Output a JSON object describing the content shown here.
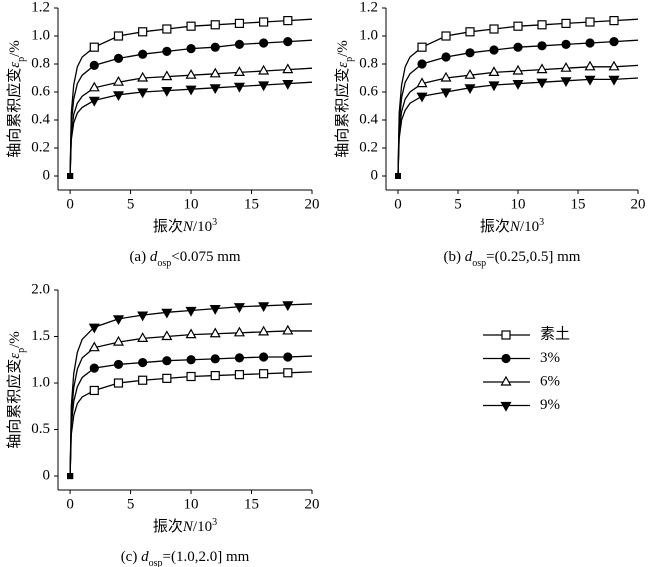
{
  "chart_data": [
    {
      "type": "line",
      "caption": [
        "(a) ",
        "d",
        "osp",
        "<0.075 mm"
      ],
      "xlabel": [
        "振次",
        "N",
        "/10",
        "3"
      ],
      "ylabel": [
        "轴向累积应变",
        "ε",
        "p",
        "/%"
      ],
      "xlim": [
        -1,
        20
      ],
      "xticks": [
        0,
        5,
        10,
        15,
        20
      ],
      "ylim": [
        -0.1,
        1.2
      ],
      "yticks": [
        0,
        0.2,
        0.4,
        0.6,
        0.8,
        {
          "value": 1,
          "label": "1.0"
        },
        1.2
      ],
      "x": [
        0,
        0.1,
        0.3,
        0.6,
        1,
        2,
        4,
        6,
        8,
        10,
        12,
        14,
        16,
        18,
        20
      ],
      "series": [
        {
          "marker": "square-open",
          "color": "#000",
          "values": [
            0,
            0.45,
            0.65,
            0.78,
            0.85,
            0.92,
            1.0,
            1.03,
            1.05,
            1.07,
            1.08,
            1.09,
            1.1,
            1.11,
            1.12
          ]
        },
        {
          "marker": "circle-filled",
          "color": "#000",
          "values": [
            0,
            0.38,
            0.55,
            0.66,
            0.72,
            0.79,
            0.84,
            0.87,
            0.89,
            0.91,
            0.92,
            0.94,
            0.95,
            0.96,
            0.97
          ]
        },
        {
          "marker": "triangle-open",
          "color": "#000",
          "values": [
            0,
            0.3,
            0.44,
            0.52,
            0.57,
            0.63,
            0.67,
            0.7,
            0.71,
            0.72,
            0.73,
            0.74,
            0.75,
            0.76,
            0.77
          ]
        },
        {
          "marker": "triangle-down-filled",
          "color": "#000",
          "values": [
            0,
            0.26,
            0.38,
            0.45,
            0.49,
            0.54,
            0.58,
            0.6,
            0.61,
            0.62,
            0.63,
            0.64,
            0.65,
            0.66,
            0.67
          ]
        }
      ]
    },
    {
      "type": "line",
      "caption": [
        "(b) ",
        "d",
        "osp",
        "=(0.25,0.5]  mm"
      ],
      "xlabel": [
        "振次",
        "N",
        "/10",
        "3"
      ],
      "ylabel": [
        "轴向累积应变",
        "ε",
        "p",
        "/%"
      ],
      "xlim": [
        -1,
        20
      ],
      "xticks": [
        0,
        5,
        10,
        15,
        20
      ],
      "ylim": [
        -0.1,
        1.2
      ],
      "yticks": [
        0,
        0.2,
        0.4,
        0.6,
        0.8,
        {
          "value": 1,
          "label": "1.0"
        },
        1.2
      ],
      "x": [
        0,
        0.1,
        0.3,
        0.6,
        1,
        2,
        4,
        6,
        8,
        10,
        12,
        14,
        16,
        18,
        20
      ],
      "series": [
        {
          "marker": "square-open",
          "color": "#000",
          "values": [
            0,
            0.45,
            0.65,
            0.78,
            0.85,
            0.92,
            1.0,
            1.03,
            1.05,
            1.07,
            1.08,
            1.09,
            1.1,
            1.11,
            1.12
          ]
        },
        {
          "marker": "circle-filled",
          "color": "#000",
          "values": [
            0,
            0.38,
            0.56,
            0.67,
            0.73,
            0.8,
            0.85,
            0.88,
            0.9,
            0.92,
            0.93,
            0.94,
            0.95,
            0.96,
            0.97
          ]
        },
        {
          "marker": "triangle-open",
          "color": "#000",
          "values": [
            0,
            0.32,
            0.46,
            0.55,
            0.6,
            0.66,
            0.7,
            0.72,
            0.74,
            0.75,
            0.76,
            0.77,
            0.78,
            0.78,
            0.79
          ]
        },
        {
          "marker": "triangle-down-filled",
          "color": "#000",
          "values": [
            0,
            0.27,
            0.4,
            0.47,
            0.52,
            0.57,
            0.6,
            0.63,
            0.65,
            0.66,
            0.67,
            0.68,
            0.69,
            0.69,
            0.7
          ]
        }
      ]
    },
    {
      "type": "line",
      "caption": [
        "(c) ",
        "d",
        "osp",
        "=(1.0,2.0]  mm"
      ],
      "xlabel": [
        "振次",
        "N",
        "/10",
        "3"
      ],
      "ylabel": [
        "轴向累积应变",
        "ε",
        "p",
        "/%"
      ],
      "xlim": [
        -1,
        20
      ],
      "xticks": [
        0,
        5,
        10,
        15,
        20
      ],
      "ylim": [
        -0.15,
        2.0
      ],
      "yticks": [
        0,
        0.5,
        {
          "value": 1,
          "label": "1.0"
        },
        1.5,
        {
          "value": 2,
          "label": "2.0"
        }
      ],
      "x": [
        0,
        0.1,
        0.3,
        0.6,
        1,
        2,
        4,
        6,
        8,
        10,
        12,
        14,
        16,
        18,
        20
      ],
      "series": [
        {
          "name": "素土",
          "marker": "square-open",
          "color": "#000",
          "values": [
            0,
            0.45,
            0.65,
            0.78,
            0.85,
            0.92,
            1.0,
            1.03,
            1.05,
            1.07,
            1.08,
            1.09,
            1.1,
            1.11,
            1.12
          ]
        },
        {
          "name": "3%",
          "marker": "circle-filled",
          "color": "#000",
          "values": [
            0,
            0.55,
            0.8,
            0.96,
            1.06,
            1.16,
            1.2,
            1.22,
            1.24,
            1.25,
            1.26,
            1.27,
            1.28,
            1.28,
            1.29
          ]
        },
        {
          "name": "6%",
          "marker": "triangle-open",
          "color": "#000",
          "values": [
            0,
            0.65,
            0.95,
            1.15,
            1.27,
            1.38,
            1.44,
            1.48,
            1.5,
            1.52,
            1.53,
            1.54,
            1.55,
            1.56,
            1.56
          ]
        },
        {
          "name": "9%",
          "marker": "triangle-down-filled",
          "color": "#000",
          "values": [
            0,
            0.75,
            1.1,
            1.33,
            1.47,
            1.6,
            1.69,
            1.73,
            1.76,
            1.78,
            1.8,
            1.82,
            1.83,
            1.84,
            1.85
          ]
        }
      ]
    }
  ]
}
